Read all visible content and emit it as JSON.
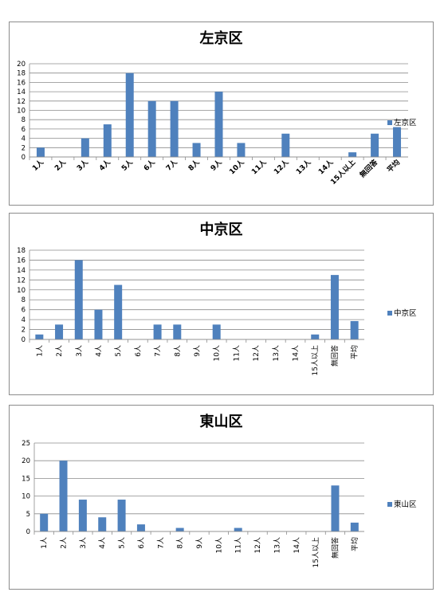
{
  "chart_data": [
    {
      "type": "bar",
      "title": "左京区",
      "categories": [
        "1人",
        "2人",
        "3人",
        "4人",
        "5人",
        "6人",
        "7人",
        "8人",
        "9人",
        "10人",
        "11人",
        "12人",
        "13人",
        "14人",
        "15人以上",
        "無回答",
        "平均"
      ],
      "series": [
        {
          "name": "左京区",
          "values": [
            2,
            0,
            4,
            7,
            18,
            12,
            12,
            3,
            14,
            3,
            0,
            5,
            0,
            0,
            1,
            5,
            6.4
          ]
        }
      ],
      "xlabel": "",
      "ylabel": "",
      "ylim": [
        0,
        20
      ],
      "ytick_step": 2,
      "grid": true,
      "legend": "right",
      "color": "#4f81bd"
    },
    {
      "type": "bar",
      "title": "中京区",
      "categories": [
        "1人",
        "2人",
        "3人",
        "4人",
        "5人",
        "6人",
        "7人",
        "8人",
        "9人",
        "10人",
        "11人",
        "12人",
        "13人",
        "14人",
        "15人以上",
        "無回答",
        "平均"
      ],
      "series": [
        {
          "name": "中京区",
          "values": [
            1,
            3,
            16,
            6,
            11,
            0,
            3,
            3,
            0,
            3,
            0,
            0,
            0,
            0,
            1,
            13,
            3.7
          ]
        }
      ],
      "xlabel": "",
      "ylabel": "",
      "ylim": [
        0,
        18
      ],
      "ytick_step": 2,
      "grid": true,
      "legend": "right",
      "color": "#4f81bd"
    },
    {
      "type": "bar",
      "title": "東山区",
      "categories": [
        "1人",
        "2人",
        "3人",
        "4人",
        "5人",
        "6人",
        "7人",
        "8人",
        "9人",
        "10人",
        "11人",
        "12人",
        "13人",
        "14人",
        "15人以上",
        "無回答",
        "平均"
      ],
      "series": [
        {
          "name": "東山区",
          "values": [
            5,
            20,
            9,
            4,
            9,
            2,
            0,
            1,
            0,
            0,
            1,
            0,
            0,
            0,
            0,
            13,
            2.5
          ]
        }
      ],
      "xlabel": "",
      "ylabel": "",
      "ylim": [
        0,
        25
      ],
      "ytick_step": 5,
      "grid": true,
      "legend": "right",
      "color": "#4f81bd"
    }
  ]
}
